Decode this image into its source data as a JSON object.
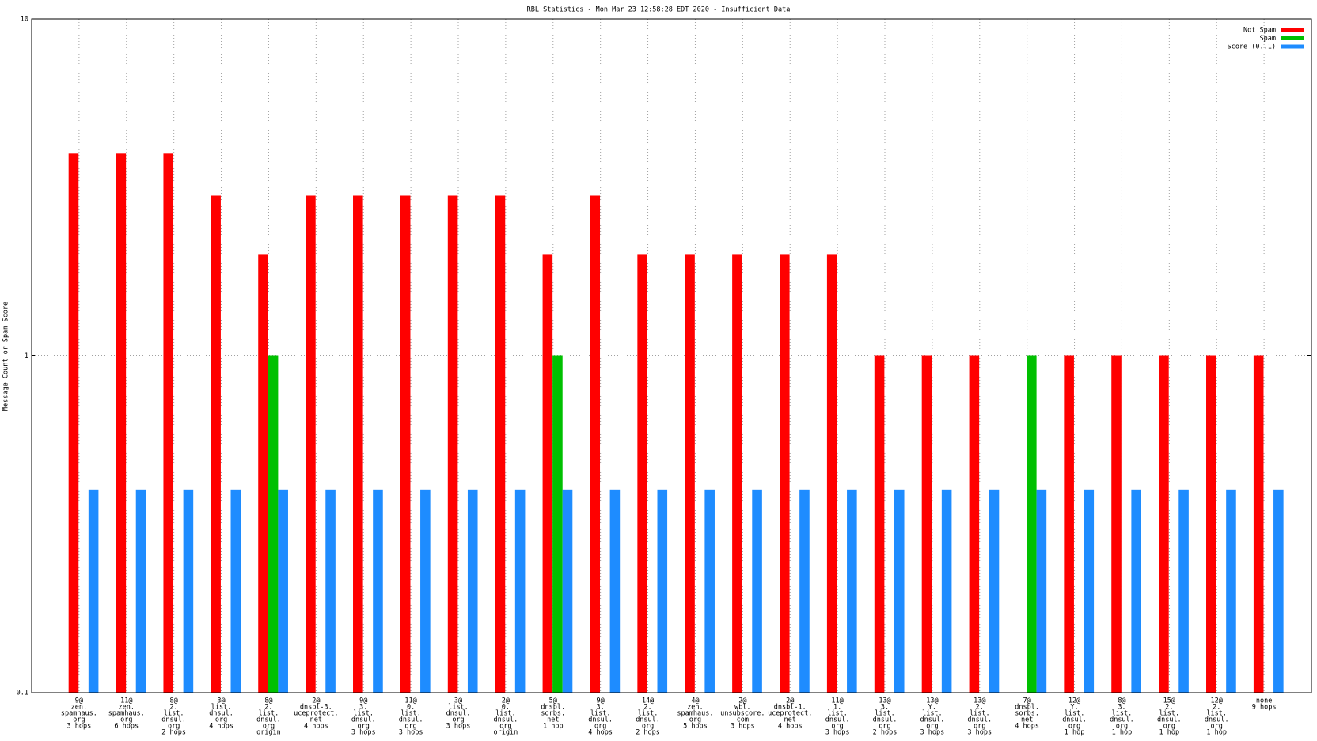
{
  "chart_data": {
    "type": "bar",
    "title": "RBL Statistics - Mon Mar 23 12:58:28 EDT 2020 - Insufficient Data",
    "y_label": "Message Count or Spam Score",
    "log_scale": true,
    "grid": true,
    "legend_position": "top-right",
    "ylim": [
      0.1,
      10
    ],
    "yticks": [
      0.1,
      1,
      10
    ],
    "categories": [
      [
        "9@",
        "zen.",
        "spamhaus.",
        "org",
        "3 hops"
      ],
      [
        "11@",
        "zen.",
        "spamhaus.",
        "org",
        "6 hops"
      ],
      [
        "8@",
        "2.",
        "list.",
        "dnsul.",
        "org",
        "2 hops"
      ],
      [
        "3@",
        "list.",
        "dnsul.",
        "org",
        "4 hops"
      ],
      [
        "8@",
        "2.",
        "list.",
        "dnsul.",
        "org",
        "origin"
      ],
      [
        "2@",
        "dnsbl-3.",
        "uceprotect.",
        "net",
        "4 hops"
      ],
      [
        "9@",
        "3.",
        "list.",
        "dnsul.",
        "org",
        "3 hops"
      ],
      [
        "11@",
        "0.",
        "list.",
        "dnsul.",
        "org",
        "3 hops"
      ],
      [
        "3@",
        "list.",
        "dnsul.",
        "org",
        "3 hops"
      ],
      [
        "2@",
        "0.",
        "list.",
        "dnsul.",
        "org",
        "origin"
      ],
      [
        "5@",
        "dnsbl.",
        "sorbs.",
        "net",
        "1 hop"
      ],
      [
        "9@",
        "3.",
        "list.",
        "dnsul.",
        "org",
        "4 hops"
      ],
      [
        "14@",
        "2.",
        "list.",
        "dnsul.",
        "org",
        "2 hops"
      ],
      [
        "4@",
        "zen.",
        "spamhaus.",
        "org",
        "5 hops"
      ],
      [
        "2@",
        "wbl.",
        "unsubscore.",
        "com",
        "3 hops"
      ],
      [
        "2@",
        "dnsbl-1.",
        "uceprotect.",
        "net",
        "4 hops"
      ],
      [
        "11@",
        "1.",
        "list.",
        "dnsul.",
        "org",
        "3 hops"
      ],
      [
        "13@",
        "3.",
        "list.",
        "dnsul.",
        "org",
        "2 hops"
      ],
      [
        "13@",
        "Y.",
        "list.",
        "dnsul.",
        "org",
        "3 hops"
      ],
      [
        "13@",
        "2.",
        "list.",
        "dnsul.",
        "org",
        "3 hops"
      ],
      [
        "7@",
        "dnsbl.",
        "sorbs.",
        "net",
        "4 hops"
      ],
      [
        "12@",
        "Y.",
        "list.",
        "dnsul.",
        "org",
        "1 hop"
      ],
      [
        "8@",
        "3.",
        "list.",
        "dnsul.",
        "org",
        "1 hop"
      ],
      [
        "15@",
        "2.",
        "list.",
        "dnsul.",
        "org",
        "1 hop"
      ],
      [
        "12@",
        "2.",
        "list.",
        "dnsul.",
        "org",
        "1 hop"
      ],
      [
        "none",
        "9 hops"
      ]
    ],
    "series": [
      {
        "name": "Not Spam",
        "color": "#ff0000",
        "values": [
          4,
          4,
          4,
          3,
          2,
          3,
          3,
          3,
          3,
          3,
          2,
          3,
          2,
          2,
          2,
          2,
          2,
          1,
          1,
          1,
          null,
          1,
          1,
          1,
          1,
          1
        ]
      },
      {
        "name": "Spam",
        "color": "#00c000",
        "values": [
          null,
          null,
          null,
          null,
          1,
          null,
          null,
          null,
          null,
          null,
          1,
          null,
          null,
          null,
          null,
          null,
          null,
          null,
          null,
          null,
          1,
          null,
          null,
          null,
          null,
          null
        ]
      },
      {
        "name": "Score (0..1)",
        "color": "#1e8cff",
        "values": [
          0.4,
          0.4,
          0.4,
          0.4,
          0.4,
          0.4,
          0.4,
          0.4,
          0.4,
          0.4,
          0.4,
          0.4,
          0.4,
          0.4,
          0.4,
          0.4,
          0.4,
          0.4,
          0.4,
          0.4,
          0.4,
          0.4,
          0.4,
          0.4,
          0.4,
          0.4
        ]
      }
    ]
  }
}
